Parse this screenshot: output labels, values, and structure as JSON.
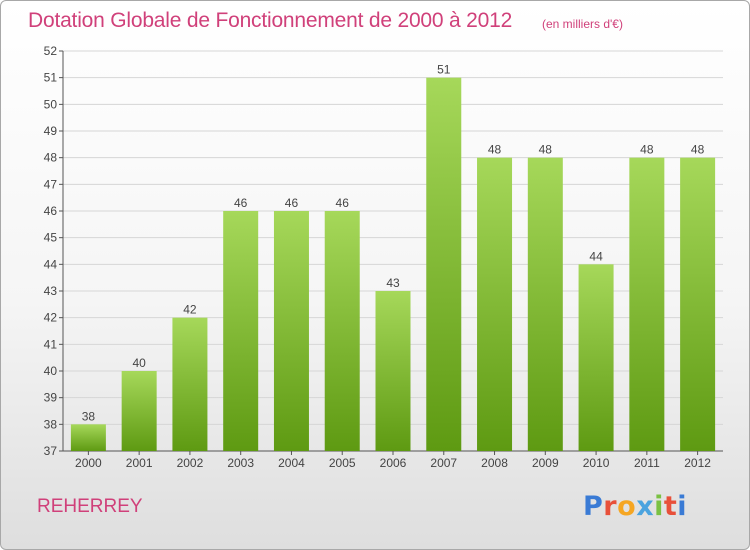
{
  "title": "Dotation Globale de Fonctionnement de 2000 à 2012",
  "unit_note": "(en milliers d'€)",
  "location": "REHERREY",
  "logo": {
    "text": "Proxiti",
    "colors": [
      "#3a7bd5",
      "#e8503a",
      "#f5a623",
      "#4aa3df",
      "#7ac143",
      "#e8503a",
      "#3a7bd5"
    ]
  },
  "colors": {
    "title": "#d0407a",
    "bar_top": "#a6d85a",
    "bar_bottom": "#5e9a12",
    "grid": "#d6d6d6",
    "axis": "#555555"
  },
  "chart_data": {
    "type": "bar",
    "categories": [
      "2000",
      "2001",
      "2002",
      "2003",
      "2004",
      "2005",
      "2006",
      "2007",
      "2008",
      "2009",
      "2010",
      "2011",
      "2012"
    ],
    "values": [
      38,
      40,
      42,
      46,
      46,
      46,
      43,
      51,
      48,
      48,
      44,
      48,
      48
    ],
    "title": "Dotation Globale de Fonctionnement de 2000 à 2012",
    "subtitle": "(en milliers d'€)",
    "xlabel": "",
    "ylabel": "",
    "ylim": [
      37,
      52
    ],
    "yticks": [
      37,
      38,
      39,
      40,
      41,
      42,
      43,
      44,
      45,
      46,
      47,
      48,
      49,
      50,
      51,
      52
    ],
    "grid": true,
    "data_labels": true
  }
}
